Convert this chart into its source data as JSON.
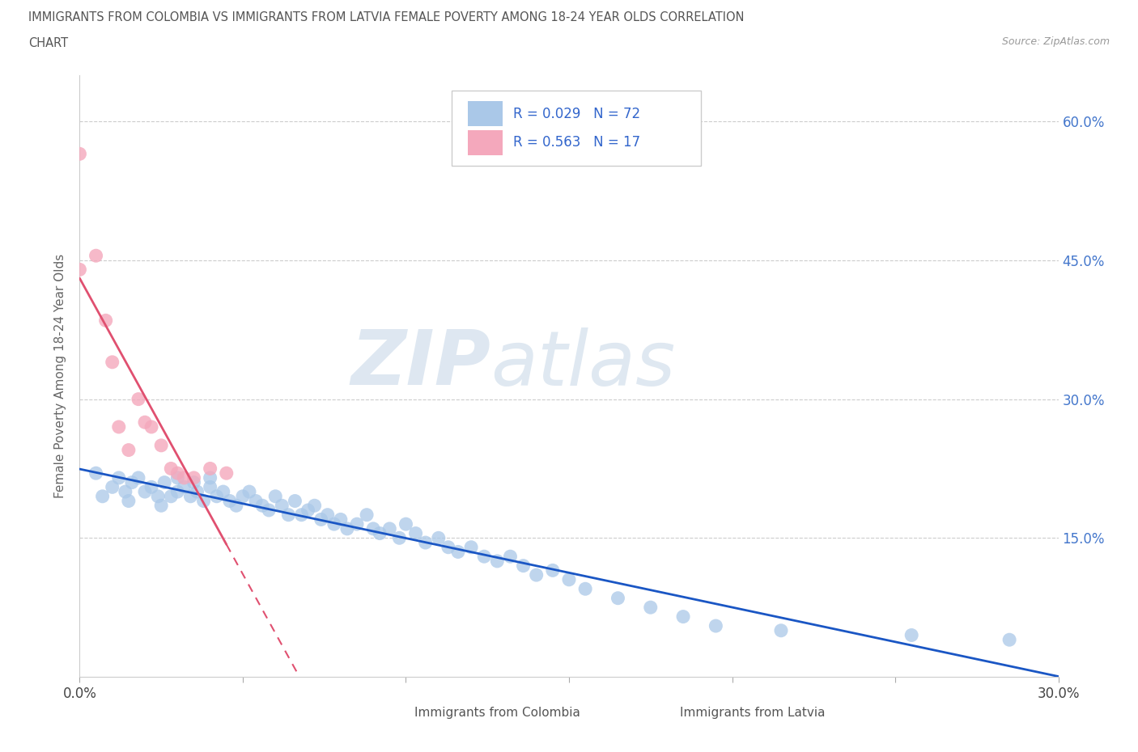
{
  "title_line1": "IMMIGRANTS FROM COLOMBIA VS IMMIGRANTS FROM LATVIA FEMALE POVERTY AMONG 18-24 YEAR OLDS CORRELATION",
  "title_line2": "CHART",
  "source_text": "Source: ZipAtlas.com",
  "ylabel": "Female Poverty Among 18-24 Year Olds",
  "xlim": [
    0.0,
    0.3
  ],
  "ylim": [
    0.0,
    0.65
  ],
  "xtick_positions": [
    0.0,
    0.05,
    0.1,
    0.15,
    0.2,
    0.25,
    0.3
  ],
  "xtick_labels": [
    "0.0%",
    "",
    "",
    "",
    "",
    "",
    "30.0%"
  ],
  "ytick_positions": [
    0.15,
    0.3,
    0.45,
    0.6
  ],
  "ytick_labels": [
    "15.0%",
    "30.0%",
    "45.0%",
    "60.0%"
  ],
  "colombia_color": "#aac8e8",
  "latvia_color": "#f4a8bc",
  "trend_colombia_color": "#1a56c4",
  "trend_latvia_color": "#e05070",
  "legend_r_colombia": "R = 0.029",
  "legend_n_colombia": "N = 72",
  "legend_r_latvia": "R = 0.563",
  "legend_n_latvia": "N = 17",
  "legend_text_color": "#3366cc",
  "watermark_zip": "ZIP",
  "watermark_atlas": "atlas",
  "colombia_x": [
    0.005,
    0.007,
    0.01,
    0.012,
    0.014,
    0.015,
    0.016,
    0.018,
    0.02,
    0.022,
    0.024,
    0.025,
    0.026,
    0.028,
    0.03,
    0.03,
    0.032,
    0.034,
    0.035,
    0.036,
    0.038,
    0.04,
    0.04,
    0.042,
    0.044,
    0.046,
    0.048,
    0.05,
    0.052,
    0.054,
    0.056,
    0.058,
    0.06,
    0.062,
    0.064,
    0.066,
    0.068,
    0.07,
    0.072,
    0.074,
    0.076,
    0.078,
    0.08,
    0.082,
    0.085,
    0.088,
    0.09,
    0.092,
    0.095,
    0.098,
    0.1,
    0.103,
    0.106,
    0.11,
    0.113,
    0.116,
    0.12,
    0.124,
    0.128,
    0.132,
    0.136,
    0.14,
    0.145,
    0.15,
    0.155,
    0.165,
    0.175,
    0.185,
    0.195,
    0.215,
    0.255,
    0.285
  ],
  "colombia_y": [
    0.22,
    0.195,
    0.205,
    0.215,
    0.2,
    0.19,
    0.21,
    0.215,
    0.2,
    0.205,
    0.195,
    0.185,
    0.21,
    0.195,
    0.2,
    0.215,
    0.205,
    0.195,
    0.21,
    0.2,
    0.19,
    0.205,
    0.215,
    0.195,
    0.2,
    0.19,
    0.185,
    0.195,
    0.2,
    0.19,
    0.185,
    0.18,
    0.195,
    0.185,
    0.175,
    0.19,
    0.175,
    0.18,
    0.185,
    0.17,
    0.175,
    0.165,
    0.17,
    0.16,
    0.165,
    0.175,
    0.16,
    0.155,
    0.16,
    0.15,
    0.165,
    0.155,
    0.145,
    0.15,
    0.14,
    0.135,
    0.14,
    0.13,
    0.125,
    0.13,
    0.12,
    0.11,
    0.115,
    0.105,
    0.095,
    0.085,
    0.075,
    0.065,
    0.055,
    0.05,
    0.045,
    0.04
  ],
  "latvia_x": [
    0.0,
    0.0,
    0.005,
    0.008,
    0.01,
    0.012,
    0.015,
    0.018,
    0.02,
    0.022,
    0.025,
    0.028,
    0.03,
    0.032,
    0.035,
    0.04,
    0.045
  ],
  "latvia_y": [
    0.565,
    0.44,
    0.455,
    0.385,
    0.34,
    0.27,
    0.245,
    0.3,
    0.275,
    0.27,
    0.25,
    0.225,
    0.22,
    0.215,
    0.215,
    0.225,
    0.22
  ]
}
